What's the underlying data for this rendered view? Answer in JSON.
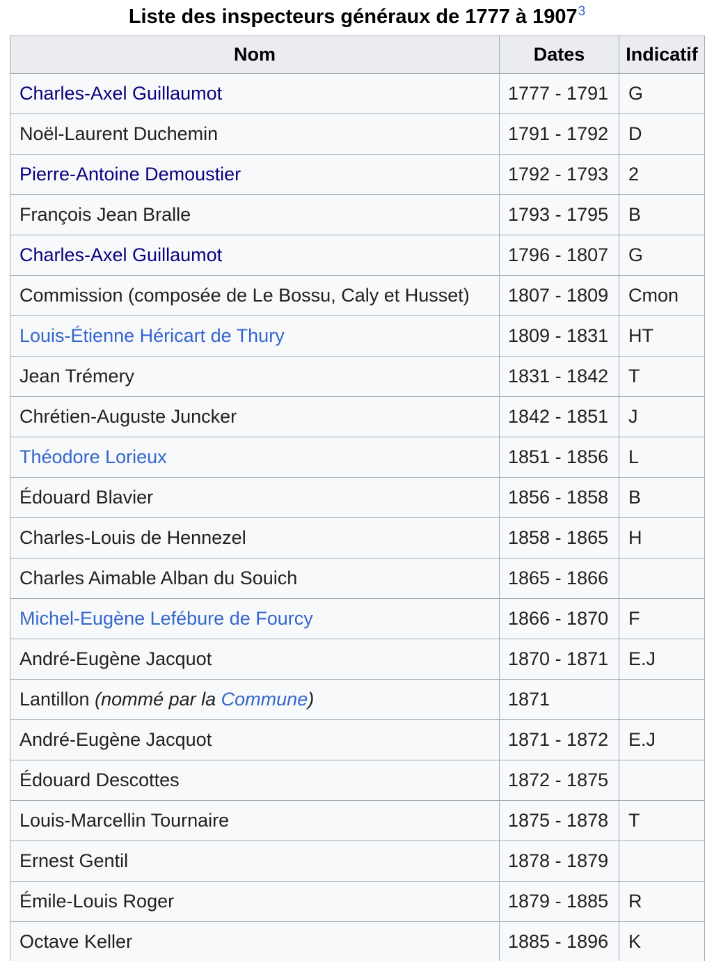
{
  "title": {
    "text": "Liste des inspecteurs généraux de 1777 à 1907",
    "reference": "3"
  },
  "colors": {
    "link": "#3366cc",
    "visited_link": "#0b0080",
    "header_bg": "#eaecf0",
    "cell_bg": "#f8f9fa",
    "border": "#a2a9b1",
    "text": "#202122"
  },
  "table": {
    "headers": [
      "Nom",
      "Dates",
      "Indicatif"
    ],
    "rows": [
      {
        "name": [
          {
            "t": "Charles-Axel Guillaumot",
            "s": "visited-link"
          }
        ],
        "dates": "1777 - 1791",
        "indicatif": "G"
      },
      {
        "name": [
          {
            "t": "Noël-Laurent Duchemin",
            "s": "plain"
          }
        ],
        "dates": "1791 - 1792",
        "indicatif": "D"
      },
      {
        "name": [
          {
            "t": "Pierre-Antoine Demoustier",
            "s": "visited-link"
          }
        ],
        "dates": "1792 - 1793",
        "indicatif": "2"
      },
      {
        "name": [
          {
            "t": "François Jean Bralle",
            "s": "plain"
          }
        ],
        "dates": "1793 - 1795",
        "indicatif": "B"
      },
      {
        "name": [
          {
            "t": "Charles-Axel Guillaumot",
            "s": "visited-link"
          }
        ],
        "dates": "1796 - 1807",
        "indicatif": "G"
      },
      {
        "name": [
          {
            "t": "Commission (composée de Le Bossu, Caly et Husset)",
            "s": "plain"
          }
        ],
        "dates": "1807 - 1809",
        "indicatif": "Cmon"
      },
      {
        "name": [
          {
            "t": "Louis-Étienne Héricart de Thury",
            "s": "link"
          }
        ],
        "dates": "1809 - 1831",
        "indicatif": "HT"
      },
      {
        "name": [
          {
            "t": "Jean Trémery",
            "s": "plain"
          }
        ],
        "dates": "1831 - 1842",
        "indicatif": "T"
      },
      {
        "name": [
          {
            "t": "Chrétien-Auguste Juncker",
            "s": "plain"
          }
        ],
        "dates": "1842 - 1851",
        "indicatif": "J"
      },
      {
        "name": [
          {
            "t": "Théodore Lorieux",
            "s": "link"
          }
        ],
        "dates": "1851 - 1856",
        "indicatif": "L"
      },
      {
        "name": [
          {
            "t": "Édouard Blavier",
            "s": "plain"
          }
        ],
        "dates": "1856 - 1858",
        "indicatif": "B"
      },
      {
        "name": [
          {
            "t": "Charles-Louis de Hennezel",
            "s": "plain"
          }
        ],
        "dates": "1858 - 1865",
        "indicatif": "H"
      },
      {
        "name": [
          {
            "t": "Charles Aimable Alban du Souich",
            "s": "plain"
          }
        ],
        "dates": "1865 - 1866",
        "indicatif": ""
      },
      {
        "name": [
          {
            "t": "Michel-Eugène Lefébure de Fourcy",
            "s": "link"
          }
        ],
        "dates": "1866 - 1870",
        "indicatif": "F"
      },
      {
        "name": [
          {
            "t": "André-Eugène Jacquot",
            "s": "plain"
          }
        ],
        "dates": "1870 - 1871",
        "indicatif": "E.J"
      },
      {
        "name": [
          {
            "t": "Lantillon ",
            "s": "plain"
          },
          {
            "t": "(nommé par la ",
            "s": "italic"
          },
          {
            "t": "Commune",
            "s": "italic-link"
          },
          {
            "t": ")",
            "s": "italic"
          }
        ],
        "dates": "1871",
        "indicatif": ""
      },
      {
        "name": [
          {
            "t": "André-Eugène Jacquot",
            "s": "plain"
          }
        ],
        "dates": "1871 - 1872",
        "indicatif": "E.J"
      },
      {
        "name": [
          {
            "t": "Édouard Descottes",
            "s": "plain"
          }
        ],
        "dates": "1872 - 1875",
        "indicatif": ""
      },
      {
        "name": [
          {
            "t": "Louis-Marcellin Tournaire",
            "s": "plain"
          }
        ],
        "dates": "1875 - 1878",
        "indicatif": "T"
      },
      {
        "name": [
          {
            "t": "Ernest Gentil",
            "s": "plain"
          }
        ],
        "dates": "1878 - 1879",
        "indicatif": ""
      },
      {
        "name": [
          {
            "t": "Émile-Louis Roger",
            "s": "plain"
          }
        ],
        "dates": "1879 - 1885",
        "indicatif": "R"
      },
      {
        "name": [
          {
            "t": "Octave Keller",
            "s": "plain"
          }
        ],
        "dates": "1885 - 1896",
        "indicatif": "K"
      }
    ]
  }
}
